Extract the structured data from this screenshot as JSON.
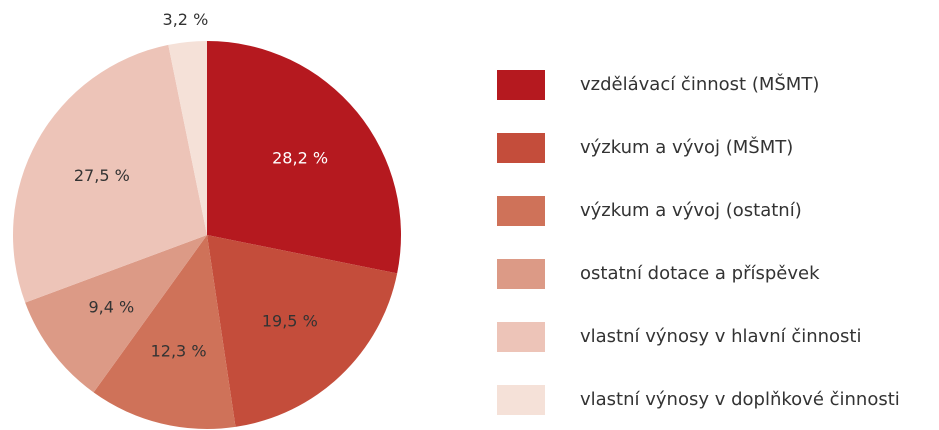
{
  "chart_data": {
    "type": "pie",
    "categories": [
      "vzdělávací činnost (MŠMT)",
      "výzkum a vývoj (MŠMT)",
      "výzkum a vývoj (ostatní)",
      "ostatní dotace a příspěvek",
      "vlastní výnosy v hlavní činnosti",
      "vlastní výnosy v doplňkové činnosti"
    ],
    "values": [
      28.2,
      19.5,
      12.3,
      9.4,
      27.5,
      3.2
    ],
    "value_labels": [
      "28,2 %",
      "19,5 %",
      "12,3 %",
      "9,4 %",
      "27,5 %",
      "3,2 %"
    ],
    "colors": [
      "#b5191f",
      "#c44d3b",
      "#cf7259",
      "#dc9a86",
      "#edc4b8",
      "#f5e1d8"
    ],
    "legend": "right"
  }
}
